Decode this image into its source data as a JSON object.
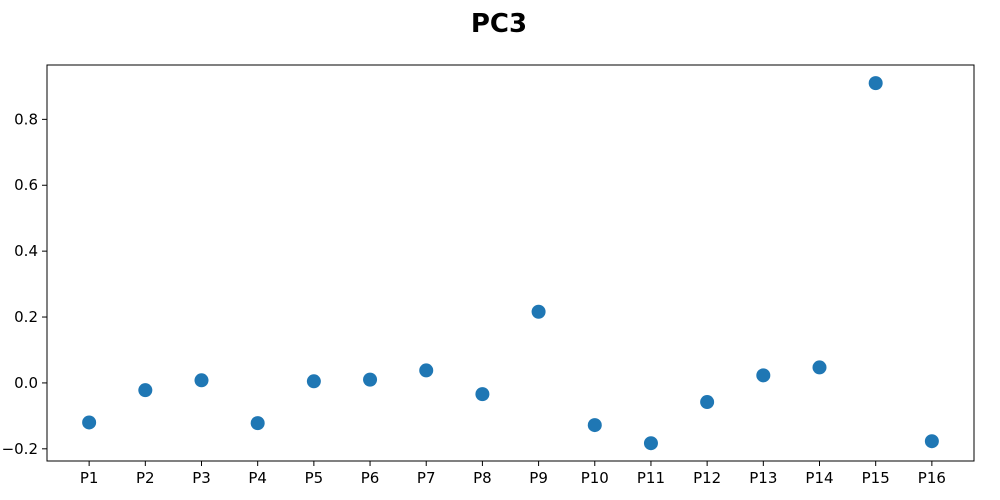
{
  "chart_data": {
    "type": "scatter",
    "title": "PC3",
    "xlabel": "",
    "ylabel": "",
    "categories": [
      "P1",
      "P2",
      "P3",
      "P4",
      "P5",
      "P6",
      "P7",
      "P8",
      "P9",
      "P10",
      "P11",
      "P12",
      "P13",
      "P14",
      "P15",
      "P16"
    ],
    "values": [
      -0.12,
      -0.022,
      0.008,
      -0.122,
      0.005,
      0.01,
      0.038,
      -0.034,
      0.216,
      -0.128,
      -0.183,
      -0.058,
      0.023,
      0.047,
      0.91,
      -0.177
    ],
    "ylim": [
      -0.237,
      0.965
    ],
    "yticks": [
      -0.2,
      0.0,
      0.2,
      0.4,
      0.6,
      0.8
    ],
    "ytick_labels": [
      "−0.2",
      "0.0",
      "0.2",
      "0.4",
      "0.6",
      "0.8"
    ],
    "grid": false,
    "marker_color": "#1f77b4"
  }
}
